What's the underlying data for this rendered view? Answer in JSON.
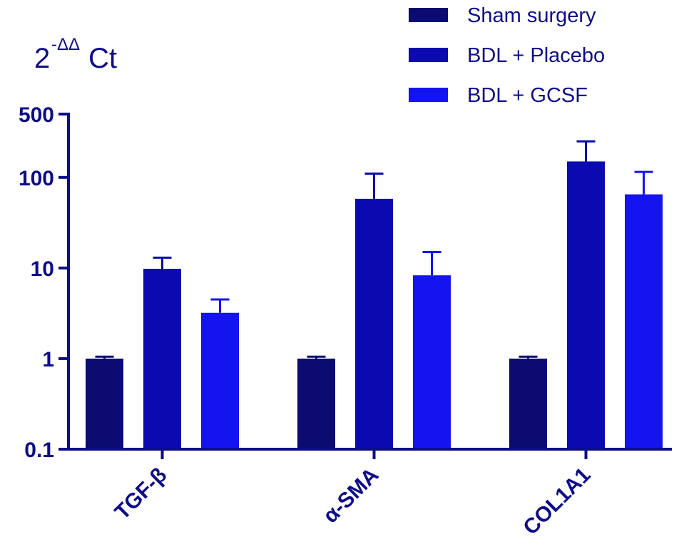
{
  "chart_data": {
    "type": "bar",
    "ylabel_base": "2",
    "ylabel_sup": "-ΔΔ",
    "ylabel_tail": "Ct",
    "yscale": "log",
    "ylim": [
      0.1,
      500
    ],
    "yticks": [
      0.1,
      1,
      10,
      100,
      500
    ],
    "ytick_labels": [
      "0.1",
      "1",
      "10",
      "100",
      "500"
    ],
    "categories": [
      "TGF-β",
      "α-SMA",
      "COL1A1"
    ],
    "series": [
      {
        "name": "Sham surgery",
        "color": "#0b0b72",
        "values": [
          1.0,
          1.0,
          1.0
        ],
        "errors": [
          1.05,
          1.05,
          1.05
        ]
      },
      {
        "name": "BDL + Placebo",
        "color": "#0a0ab0",
        "values": [
          9.8,
          58,
          150
        ],
        "errors": [
          13,
          110,
          250
        ]
      },
      {
        "name": "BDL + GCSF",
        "color": "#1414f0",
        "values": [
          3.2,
          8.3,
          65
        ],
        "errors": [
          4.5,
          15,
          115
        ]
      }
    ],
    "legend_position": "top-right",
    "axis_color": "#0d0d8a"
  }
}
